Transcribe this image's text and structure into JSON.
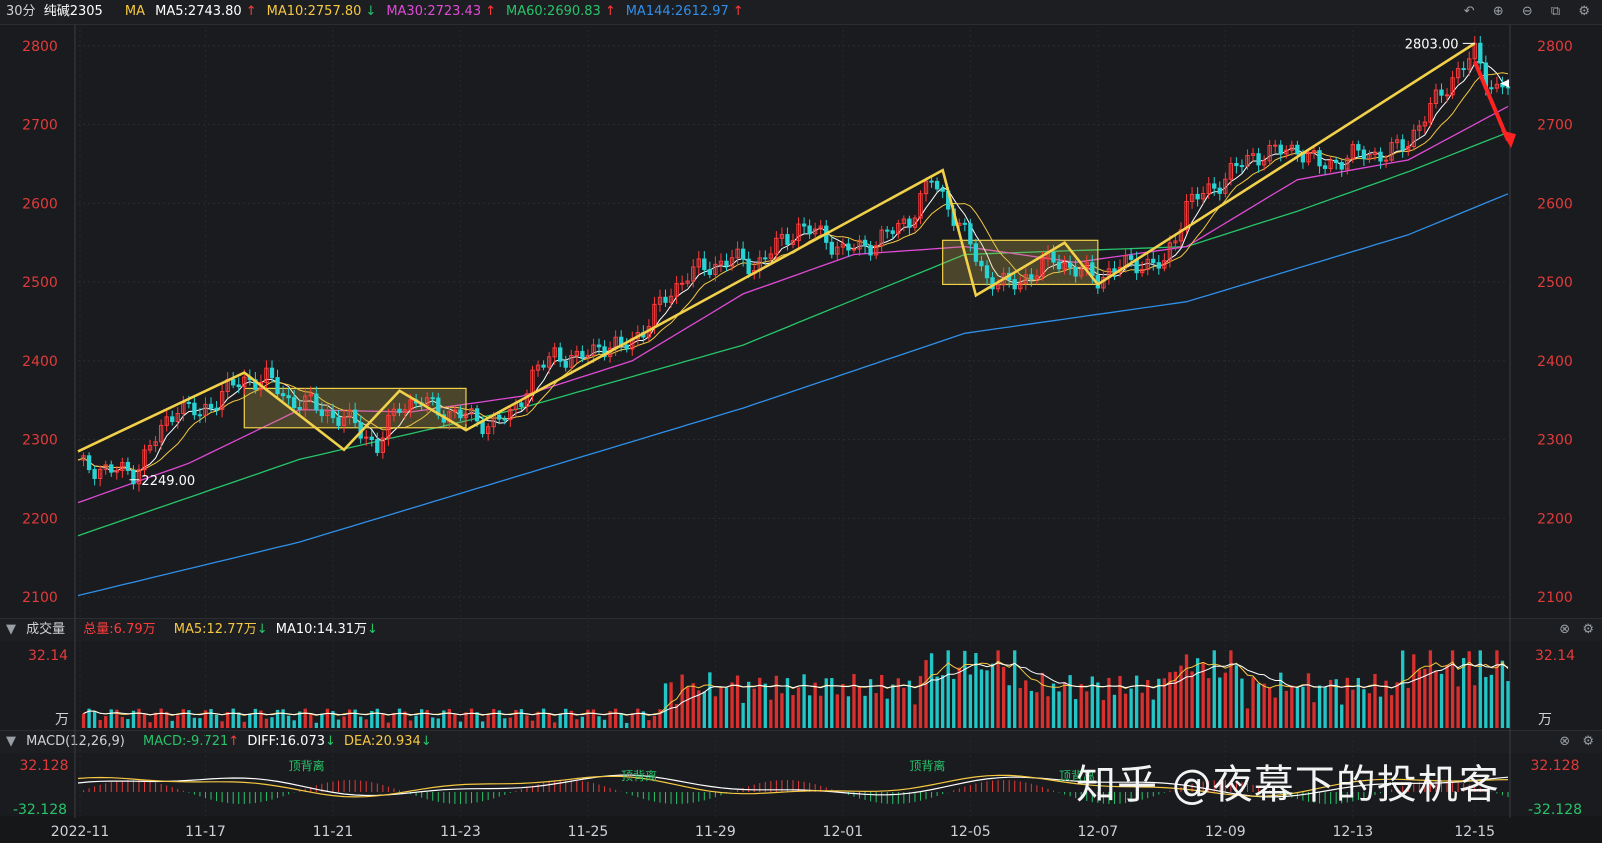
{
  "header": {
    "period": "30分",
    "symbol": "纯碱2305",
    "ma_label": "MA",
    "ma_items": [
      {
        "text": "MA5:2743.80",
        "arrow": "↑",
        "color": "#ffffff",
        "arrow_color": "#ff3b3b"
      },
      {
        "text": "MA10:2757.80",
        "arrow": "↓",
        "color": "#f5c842",
        "arrow_color": "#27c46a"
      },
      {
        "text": "MA30:2723.43",
        "arrow": "↑",
        "color": "#e04ad6",
        "arrow_color": "#ff3b3b"
      },
      {
        "text": "MA60:2690.83",
        "arrow": "↑",
        "color": "#27c46a",
        "arrow_color": "#ff3b3b"
      },
      {
        "text": "MA144:2612.97",
        "arrow": "↑",
        "color": "#2f8fe8",
        "arrow_color": "#ff3b3b"
      }
    ],
    "icons": [
      "undo-icon",
      "zoom-in-icon",
      "zoom-out-icon",
      "window-icon",
      "gear-icon"
    ]
  },
  "volume_bar": {
    "title": "成交量",
    "total": "总量:6.79万",
    "ma5": "MA5:12.77万",
    "ma10": "MA10:14.31万",
    "ma5_arrow": "↓",
    "ma10_arrow": "↓"
  },
  "macd_bar": {
    "title": "MACD(12,26,9)",
    "macd": "MACD:-9.721",
    "macd_arrow": "↑",
    "diff": "DIFF:16.073",
    "diff_arrow": "↓",
    "dea": "DEA:20.934",
    "dea_arrow": "↓"
  },
  "watermark": "知乎 @夜幕下的投机客",
  "chart_data": {
    "type": "candlestick",
    "price_axis": {
      "ticks": [
        "2800",
        "2700",
        "2600",
        "2500",
        "2400",
        "2300",
        "2200",
        "2100"
      ],
      "ylim": [
        2090,
        2820
      ]
    },
    "x_ticks": [
      "2022-11",
      "11-17",
      "11-21",
      "11-23",
      "11-25",
      "11-29",
      "12-01",
      "12-05",
      "12-07",
      "12-09",
      "12-13",
      "12-15"
    ],
    "annotations": {
      "high": "2803.00",
      "low": "2249.00"
    },
    "close_path": [
      [
        0,
        2268
      ],
      [
        5,
        2262
      ],
      [
        10,
        2258
      ],
      [
        14,
        2300
      ],
      [
        18,
        2345
      ],
      [
        22,
        2330
      ],
      [
        26,
        2360
      ],
      [
        30,
        2375
      ],
      [
        34,
        2378
      ],
      [
        38,
        2350
      ],
      [
        42,
        2345
      ],
      [
        46,
        2330
      ],
      [
        50,
        2320
      ],
      [
        54,
        2290
      ],
      [
        58,
        2345
      ],
      [
        62,
        2348
      ],
      [
        66,
        2335
      ],
      [
        70,
        2330
      ],
      [
        74,
        2320
      ],
      [
        78,
        2330
      ],
      [
        82,
        2380
      ],
      [
        86,
        2410
      ],
      [
        90,
        2400
      ],
      [
        94,
        2420
      ],
      [
        98,
        2415
      ],
      [
        102,
        2440
      ],
      [
        106,
        2480
      ],
      [
        110,
        2510
      ],
      [
        114,
        2520
      ],
      [
        118,
        2530
      ],
      [
        122,
        2520
      ],
      [
        126,
        2545
      ],
      [
        130,
        2570
      ],
      [
        134,
        2560
      ],
      [
        138,
        2540
      ],
      [
        142,
        2545
      ],
      [
        146,
        2560
      ],
      [
        150,
        2580
      ],
      [
        154,
        2630
      ],
      [
        156,
        2610
      ],
      [
        160,
        2560
      ],
      [
        164,
        2505
      ],
      [
        168,
        2495
      ],
      [
        172,
        2510
      ],
      [
        176,
        2530
      ],
      [
        180,
        2515
      ],
      [
        184,
        2505
      ],
      [
        188,
        2520
      ],
      [
        192,
        2525
      ],
      [
        196,
        2520
      ],
      [
        200,
        2600
      ],
      [
        204,
        2615
      ],
      [
        208,
        2640
      ],
      [
        212,
        2660
      ],
      [
        216,
        2665
      ],
      [
        220,
        2670
      ],
      [
        224,
        2648
      ],
      [
        228,
        2655
      ],
      [
        232,
        2665
      ],
      [
        236,
        2660
      ],
      [
        240,
        2680
      ],
      [
        244,
        2720
      ],
      [
        248,
        2760
      ],
      [
        252,
        2790
      ],
      [
        254,
        2760
      ],
      [
        256,
        2745
      ],
      [
        258,
        2750
      ]
    ],
    "ma_series": [
      {
        "name": "MA60",
        "color": "#27c46a",
        "points": [
          [
            0,
            2178
          ],
          [
            40,
            2275
          ],
          [
            80,
            2340
          ],
          [
            120,
            2420
          ],
          [
            160,
            2535
          ],
          [
            180,
            2540
          ],
          [
            200,
            2545
          ],
          [
            220,
            2590
          ],
          [
            240,
            2640
          ],
          [
            258,
            2690
          ]
        ]
      },
      {
        "name": "MA144",
        "color": "#2f8fe8",
        "points": [
          [
            0,
            2102
          ],
          [
            40,
            2170
          ],
          [
            80,
            2255
          ],
          [
            120,
            2340
          ],
          [
            160,
            2435
          ],
          [
            200,
            2475
          ],
          [
            240,
            2560
          ],
          [
            258,
            2612
          ]
        ]
      },
      {
        "name": "MA30",
        "color": "#e04ad6",
        "points": [
          [
            0,
            2220
          ],
          [
            20,
            2270
          ],
          [
            40,
            2338
          ],
          [
            60,
            2335
          ],
          [
            80,
            2355
          ],
          [
            100,
            2400
          ],
          [
            120,
            2485
          ],
          [
            140,
            2535
          ],
          [
            160,
            2545
          ],
          [
            180,
            2525
          ],
          [
            200,
            2545
          ],
          [
            220,
            2630
          ],
          [
            240,
            2655
          ],
          [
            258,
            2723
          ]
        ]
      }
    ],
    "volume_axis": {
      "top": "32.14",
      "unit": "万"
    },
    "macd_axis": {
      "top": "32.128",
      "bottom": "-32.128"
    },
    "macd_labels": [
      "顶背离",
      "顶背离",
      "顶背离",
      "顶背离"
    ],
    "pattern_lines": [
      [
        [
          0,
          2285
        ],
        [
          30,
          2385
        ],
        [
          48,
          2287
        ],
        [
          58,
          2362
        ],
        [
          70,
          2312
        ],
        [
          156,
          2642
        ],
        [
          162,
          2483
        ],
        [
          178,
          2550
        ],
        [
          184,
          2497
        ],
        [
          252,
          2803
        ]
      ]
    ],
    "boxes": [
      [
        [
          30,
          2315
        ],
        [
          70,
          2365
        ]
      ],
      [
        [
          156,
          2497
        ],
        [
          184,
          2553
        ]
      ]
    ]
  }
}
